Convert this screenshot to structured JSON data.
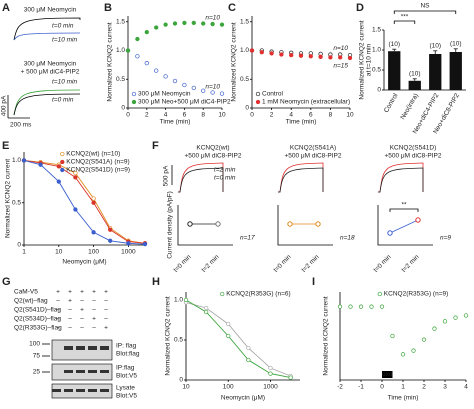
{
  "panel_labels": [
    "A",
    "B",
    "C",
    "D",
    "E",
    "F",
    "G",
    "H",
    "I"
  ],
  "panel_a": {
    "top": {
      "title": "300 μM Neomycin",
      "t0": "t=0 min",
      "t1": "t=10 min"
    },
    "bottom": {
      "title": "300 μM Neomycin",
      "title2": "+ 500 μM diC4-PIP2",
      "t0": "t=0 min",
      "t1": "t=10 min"
    },
    "scale_y": "400 pA",
    "scale_x": "200 ms"
  },
  "panel_f": {
    "cells": [
      {
        "title": "KCNQ2(wt)",
        "subtitle": "+500 μM diC8-PIP2",
        "n": "n=17"
      },
      {
        "title": "KCNQ2(S541A)",
        "subtitle": "+500 μM diC8-PIP2",
        "n": "n=18"
      },
      {
        "title": "KCNQ2(S541D)",
        "subtitle": "+500 μM diC8-PIP2",
        "n": "n=9"
      }
    ],
    "t2": "t=2 min",
    "t0": "t=0 min",
    "scale": "500 pA",
    "ylabel": "Current density (pA/pF)",
    "x0": "t=0 min",
    "x1": "t=2 min",
    "sig": "**"
  },
  "panel_g": {
    "rows": [
      {
        "label": "CaM-V5",
        "signs": [
          "+",
          "+",
          "+",
          "+",
          "+"
        ]
      },
      {
        "label": "Q2(wt)–flag",
        "signs": [
          "–",
          "+",
          "–",
          "–",
          "–"
        ]
      },
      {
        "label": "Q2(S541D)–flag",
        "signs": [
          "–",
          "–",
          "+",
          "–",
          "–"
        ]
      },
      {
        "label": "Q2(S534D)–flag",
        "signs": [
          "–",
          "–",
          "–",
          "+",
          "–"
        ]
      },
      {
        "label": "Q2(R353G)–flag",
        "signs": [
          "–",
          "–",
          "–",
          "–",
          "+"
        ]
      }
    ],
    "markers": [
      "100",
      "75",
      "25"
    ],
    "blots": [
      [
        "IP: flag",
        "Blot:flag"
      ],
      [
        "IP:flag",
        "Blot:V5"
      ],
      [
        "Lysate",
        "Blot:V5"
      ]
    ]
  },
  "chart_data": [
    {
      "type": "line",
      "xlabel": "Time (min)",
      "ylabel": [
        "Normalized KCNQ2 current"
      ],
      "x": [
        0,
        1,
        2,
        3,
        4,
        5,
        6,
        7,
        8,
        9,
        10
      ],
      "xlim": [
        0,
        10
      ],
      "xticks": [
        0,
        2,
        4,
        6,
        8,
        10
      ],
      "ylim": [
        0,
        1.6
      ],
      "yticks": [
        0,
        0.5,
        {
          "value": 1,
          "label": "1.0"
        },
        1.5
      ],
      "legend": "lower-left",
      "lines": false,
      "series": [
        {
          "name": "300 μM Neomycin",
          "color": "#3a5fcd",
          "open": true,
          "values": [
            1,
            0.9,
            0.78,
            0.65,
            0.55,
            0.47,
            0.4,
            0.35,
            0.3,
            0.27,
            0.25
          ]
        },
        {
          "name": "300 μM Neo+500 μM diC4-PIP2",
          "color": "#3aa53a",
          "open": false,
          "values": [
            1,
            1.2,
            1.32,
            1.4,
            1.45,
            1.47,
            1.48,
            1.48,
            1.47,
            1.46,
            1.45
          ]
        }
      ],
      "annotations": [
        "n=10",
        "n=10"
      ]
    },
    {
      "type": "line",
      "xlabel": "Time (min)",
      "ylabel": [
        "Normalized KCNQ2 current"
      ],
      "x": [
        0,
        1,
        2,
        3,
        4,
        5,
        6,
        7,
        8,
        9,
        10
      ],
      "xlim": [
        0,
        10
      ],
      "xticks": [
        0,
        2,
        4,
        6,
        8,
        10
      ],
      "ylim": [
        0,
        1.6
      ],
      "yticks": [
        0,
        0.5,
        {
          "value": 1,
          "label": "1.0"
        },
        1.5
      ],
      "legend": "lower-left",
      "lines": false,
      "series": [
        {
          "name": "Control",
          "color": "#222222",
          "open": true,
          "values": [
            1,
            1,
            0.98,
            0.97,
            0.96,
            0.95,
            0.95,
            0.94,
            0.93,
            0.93,
            0.92
          ]
        },
        {
          "name": "1 mM Neomycin (extracellular)",
          "color": "#e03030",
          "open": false,
          "values": [
            1,
            0.97,
            0.95,
            0.93,
            0.92,
            0.91,
            0.9,
            0.89,
            0.88,
            0.88,
            0.87
          ]
        }
      ],
      "annotations": [
        "n=10",
        "n=15"
      ]
    },
    {
      "type": "bar",
      "ylabel": [
        "Normalized KCNQ2 current",
        "at t=10 min"
      ],
      "categories": [
        "Control",
        "Neo(intra)",
        "Neo+diC4-PIP2",
        "Neo+diC8-PIP2"
      ],
      "values": [
        0.97,
        0.23,
        0.9,
        0.95
      ],
      "errors": [
        0.05,
        0.05,
        0.08,
        0.08
      ],
      "color": "#111111",
      "bar_notes": [
        "(10)",
        "(10)",
        "(10)",
        "(10)"
      ],
      "significance": [
        "***",
        "NS"
      ],
      "ylim": [
        0,
        1.5
      ],
      "yticks": [
        0,
        0.5,
        {
          "value": 1,
          "label": "1.0"
        },
        1.5
      ]
    },
    {
      "type": "line",
      "xlabel": "Neomycin (μM)",
      "ylabel": [
        "Normalized KCNQ2 current"
      ],
      "xlog": true,
      "x": [
        1,
        3,
        10,
        30,
        100,
        300,
        1000,
        3000
      ],
      "xlim": [
        1,
        3000
      ],
      "xticks": [
        1,
        10,
        100,
        1000
      ],
      "ylim": [
        0,
        1.1
      ],
      "yticks": [
        0,
        0.5,
        {
          "value": 1,
          "label": "1.0"
        }
      ],
      "legend": "upper-right",
      "lines": true,
      "series": [
        {
          "name": "KCNQ2(wt) (n=10)",
          "color": "#e08a1e",
          "open": true,
          "values": [
            1,
            0.98,
            0.95,
            0.85,
            0.55,
            0.2,
            0.05,
            0.02
          ]
        },
        {
          "name": "KCNQ2(S541A) (n=9)",
          "color": "#d9342b",
          "open": false,
          "values": [
            1,
            0.97,
            0.93,
            0.8,
            0.5,
            0.18,
            0.04,
            0.02
          ]
        },
        {
          "name": "KCNQ2(S541D) (n=9)",
          "color": "#3a5fcd",
          "open": false,
          "values": [
            1,
            0.95,
            0.75,
            0.42,
            0.15,
            0.05,
            0.02,
            0.01
          ]
        }
      ]
    },
    {
      "type": "line",
      "xlabel": "Neomycin (μM)",
      "ylabel": [
        "Normalized KCNQ2 current"
      ],
      "xlog": true,
      "x": [
        10,
        30,
        100,
        300,
        1000,
        3000
      ],
      "xlim": [
        10,
        5000
      ],
      "xticks": [
        10,
        100,
        1000
      ],
      "ylim": [
        0,
        1.1
      ],
      "yticks": [
        0,
        0.5,
        {
          "value": 1,
          "label": "1.0"
        }
      ],
      "legend": "upper-right",
      "lines": true,
      "series": [
        {
          "color": "#aaaaaa",
          "open": true,
          "values": [
            0.97,
            0.9,
            0.7,
            0.4,
            0.15,
            0.05
          ]
        },
        {
          "name": "KCNQ2(R353G) (n=6)",
          "color": "#3aa53a",
          "open": true,
          "values": [
            1,
            0.85,
            0.55,
            0.25,
            0.08,
            0.03
          ]
        }
      ]
    },
    {
      "type": "line",
      "xlabel": "Time (min)",
      "ylabel": [
        "Normalized KCNQ2 current"
      ],
      "x": [
        -2,
        -1.5,
        -1,
        -0.5,
        0,
        0.5,
        1,
        1.5,
        2,
        2.5,
        3,
        3.5,
        4
      ],
      "xlim": [
        -2,
        4
      ],
      "xticks": [
        -2,
        -1,
        0,
        1,
        2,
        3,
        4
      ],
      "ylim": [
        0,
        1.2
      ],
      "yticks": [],
      "legend": "upper-right",
      "lines": false,
      "stimulus": {
        "label": "oxo",
        "start": 0,
        "end": 0.5
      },
      "series": [
        {
          "name": "KCNQ2(R353G) (n=9)",
          "color": "#3aa53a",
          "open": true,
          "values": [
            1,
            1,
            1,
            1,
            1,
            0.6,
            0.35,
            0.4,
            0.55,
            0.7,
            0.8,
            0.85,
            0.88
          ]
        }
      ]
    }
  ]
}
